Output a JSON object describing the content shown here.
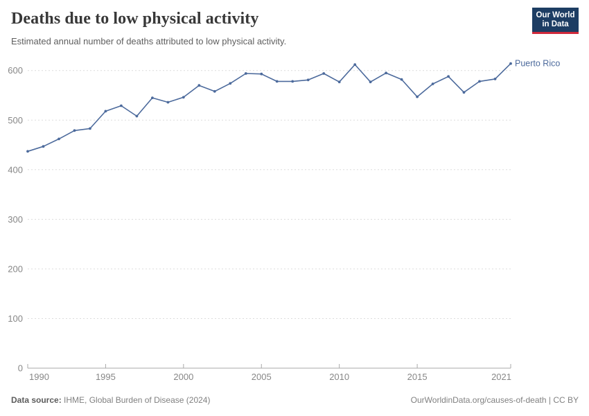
{
  "header": {
    "title": "Deaths due to low physical activity",
    "subtitle": "Estimated annual number of deaths attributed to low physical activity.",
    "logo": {
      "line1": "Our World",
      "line2": "in Data"
    }
  },
  "chart_data": {
    "type": "line",
    "title": "Deaths due to low physical activity",
    "subtitle": "Estimated annual number of deaths attributed to low physical activity.",
    "entity_label": "Puerto Rico",
    "x": [
      1990,
      1991,
      1992,
      1993,
      1994,
      1995,
      1996,
      1997,
      1998,
      1999,
      2000,
      2001,
      2002,
      2003,
      2004,
      2005,
      2006,
      2007,
      2008,
      2009,
      2010,
      2011,
      2012,
      2013,
      2014,
      2015,
      2016,
      2017,
      2018,
      2019,
      2020,
      2021
    ],
    "series": [
      {
        "name": "Puerto Rico",
        "color": "#4c6a9c",
        "values": [
          437,
          447,
          462,
          479,
          483,
          518,
          529,
          508,
          545,
          536,
          546,
          570,
          558,
          574,
          594,
          593,
          578,
          578,
          581,
          594,
          577,
          612,
          577,
          595,
          582,
          547,
          573,
          588,
          556,
          578,
          583,
          614
        ]
      }
    ],
    "xlabel": "",
    "ylabel": "",
    "xlim": [
      1990,
      2021
    ],
    "ylim": [
      0,
      640
    ],
    "xticks": [
      1990,
      1995,
      2000,
      2005,
      2010,
      2015,
      2021
    ],
    "yticks": [
      0,
      100,
      200,
      300,
      400,
      500,
      600
    ],
    "grid": "horizontal-dashed",
    "legend_position": "end-of-line-label"
  },
  "footer": {
    "datasource_label": "Data source:",
    "datasource_text": " IHME, Global Burden of Disease (2024)",
    "link": "OurWorldinData.org/causes-of-death | CC BY"
  },
  "colors": {
    "line": "#4c6a9c",
    "entity_label": "#4c6a9c",
    "title": "#383838",
    "subtitle": "#5e5e5e",
    "axis_text": "#878787",
    "gridline": "#dcdcdc",
    "axis_line": "#a8a8a8",
    "footer_text": "#808080",
    "logo_background": "#1d3d63",
    "logo_red_bar": "#d0293b"
  }
}
